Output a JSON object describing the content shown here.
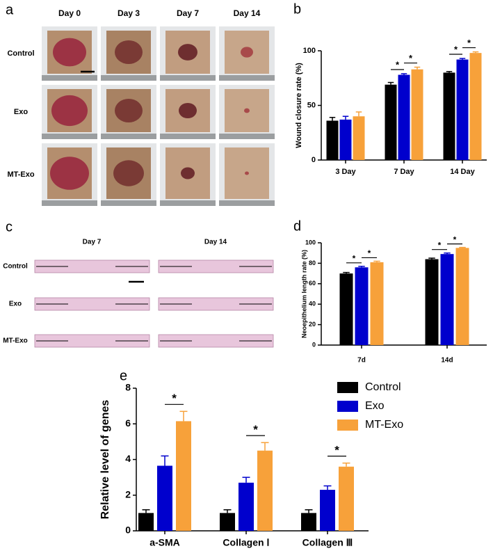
{
  "photo_panel": {
    "label": "a",
    "columns": [
      "Day 0",
      "Day 3",
      "Day 7",
      "Day 14"
    ],
    "rows": [
      "Control",
      "Exo",
      "MT-Exo"
    ]
  },
  "histology_panel": {
    "label": "c",
    "columns": [
      "Day 7",
      "Day 14"
    ],
    "rows": [
      "Control",
      "Exo",
      "MT-Exo"
    ]
  },
  "chart_data": [
    {
      "type": "bar",
      "panel_label": "b",
      "y_label": "Wound closure rate (%)",
      "categories": [
        "3 Day",
        "7 Day",
        "14 Day"
      ],
      "series": [
        {
          "name": "Control",
          "color": "#000000",
          "values": [
            36,
            69,
            80
          ],
          "errors": [
            3,
            2,
            1
          ]
        },
        {
          "name": "Exo",
          "color": "#0000cd",
          "values": [
            37,
            78,
            92
          ],
          "errors": [
            3,
            1,
            1
          ]
        },
        {
          "name": "MT-Exo",
          "color": "#f7a13a",
          "values": [
            40,
            83,
            98
          ],
          "errors": [
            4,
            2,
            1
          ]
        }
      ],
      "ylim": [
        0,
        100
      ],
      "yticks": [
        0,
        50,
        100
      ],
      "grid": false,
      "annotations": [
        {
          "text": "*",
          "category": "7 Day",
          "series": [
            "Control",
            "Exo"
          ]
        },
        {
          "text": "*",
          "category": "7 Day",
          "series": [
            "Exo",
            "MT-Exo"
          ]
        },
        {
          "text": "*",
          "category": "14 Day",
          "series": [
            "Control",
            "Exo"
          ]
        },
        {
          "text": "*",
          "category": "14 Day",
          "series": [
            "Exo",
            "MT-Exo"
          ]
        }
      ]
    },
    {
      "type": "bar",
      "panel_label": "d",
      "y_label": "Neoepithelium length rate (%)",
      "categories": [
        "7d",
        "14d"
      ],
      "series": [
        {
          "name": "Control",
          "color": "#000000",
          "values": [
            70,
            84
          ],
          "errors": [
            1,
            1
          ]
        },
        {
          "name": "Exo",
          "color": "#0000cd",
          "values": [
            76,
            89
          ],
          "errors": [
            1,
            1
          ]
        },
        {
          "name": "MT-Exo",
          "color": "#f7a13a",
          "values": [
            81,
            95
          ],
          "errors": [
            1,
            0.5
          ]
        }
      ],
      "ylim": [
        0,
        100
      ],
      "yticks": [
        0,
        20,
        40,
        60,
        80,
        100
      ],
      "grid": false,
      "annotations": [
        {
          "text": "*",
          "category": "7d",
          "series": [
            "Control",
            "Exo"
          ]
        },
        {
          "text": "*",
          "category": "7d",
          "series": [
            "Exo",
            "MT-Exo"
          ]
        },
        {
          "text": "*",
          "category": "14d",
          "series": [
            "Control",
            "Exo"
          ]
        },
        {
          "text": "*",
          "category": "14d",
          "series": [
            "Exo",
            "MT-Exo"
          ]
        }
      ]
    },
    {
      "type": "bar",
      "panel_label": "e",
      "y_label": "Relative level of genes",
      "categories": [
        "a-SMA",
        "Collagen Ⅰ",
        "Collagen Ⅲ"
      ],
      "series": [
        {
          "name": "Control",
          "color": "#000000",
          "values": [
            1,
            1,
            1
          ],
          "errors": [
            0.18,
            0.18,
            0.18
          ]
        },
        {
          "name": "Exo",
          "color": "#0000cd",
          "values": [
            3.65,
            2.7,
            2.3
          ],
          "errors": [
            0.55,
            0.3,
            0.22
          ]
        },
        {
          "name": "MT-Exo",
          "color": "#f7a13a",
          "values": [
            6.15,
            4.5,
            3.6
          ],
          "errors": [
            0.55,
            0.45,
            0.2
          ]
        }
      ],
      "ylim": [
        0,
        8
      ],
      "yticks": [
        0,
        2,
        4,
        6,
        8
      ],
      "grid": false,
      "legend": "right",
      "annotations": [
        {
          "text": "*",
          "category": "a-SMA",
          "series": [
            "Exo",
            "MT-Exo"
          ]
        },
        {
          "text": "*",
          "category": "Collagen Ⅰ",
          "series": [
            "Exo",
            "MT-Exo"
          ]
        },
        {
          "text": "*",
          "category": "Collagen Ⅲ",
          "series": [
            "Exo",
            "MT-Exo"
          ]
        }
      ]
    }
  ]
}
